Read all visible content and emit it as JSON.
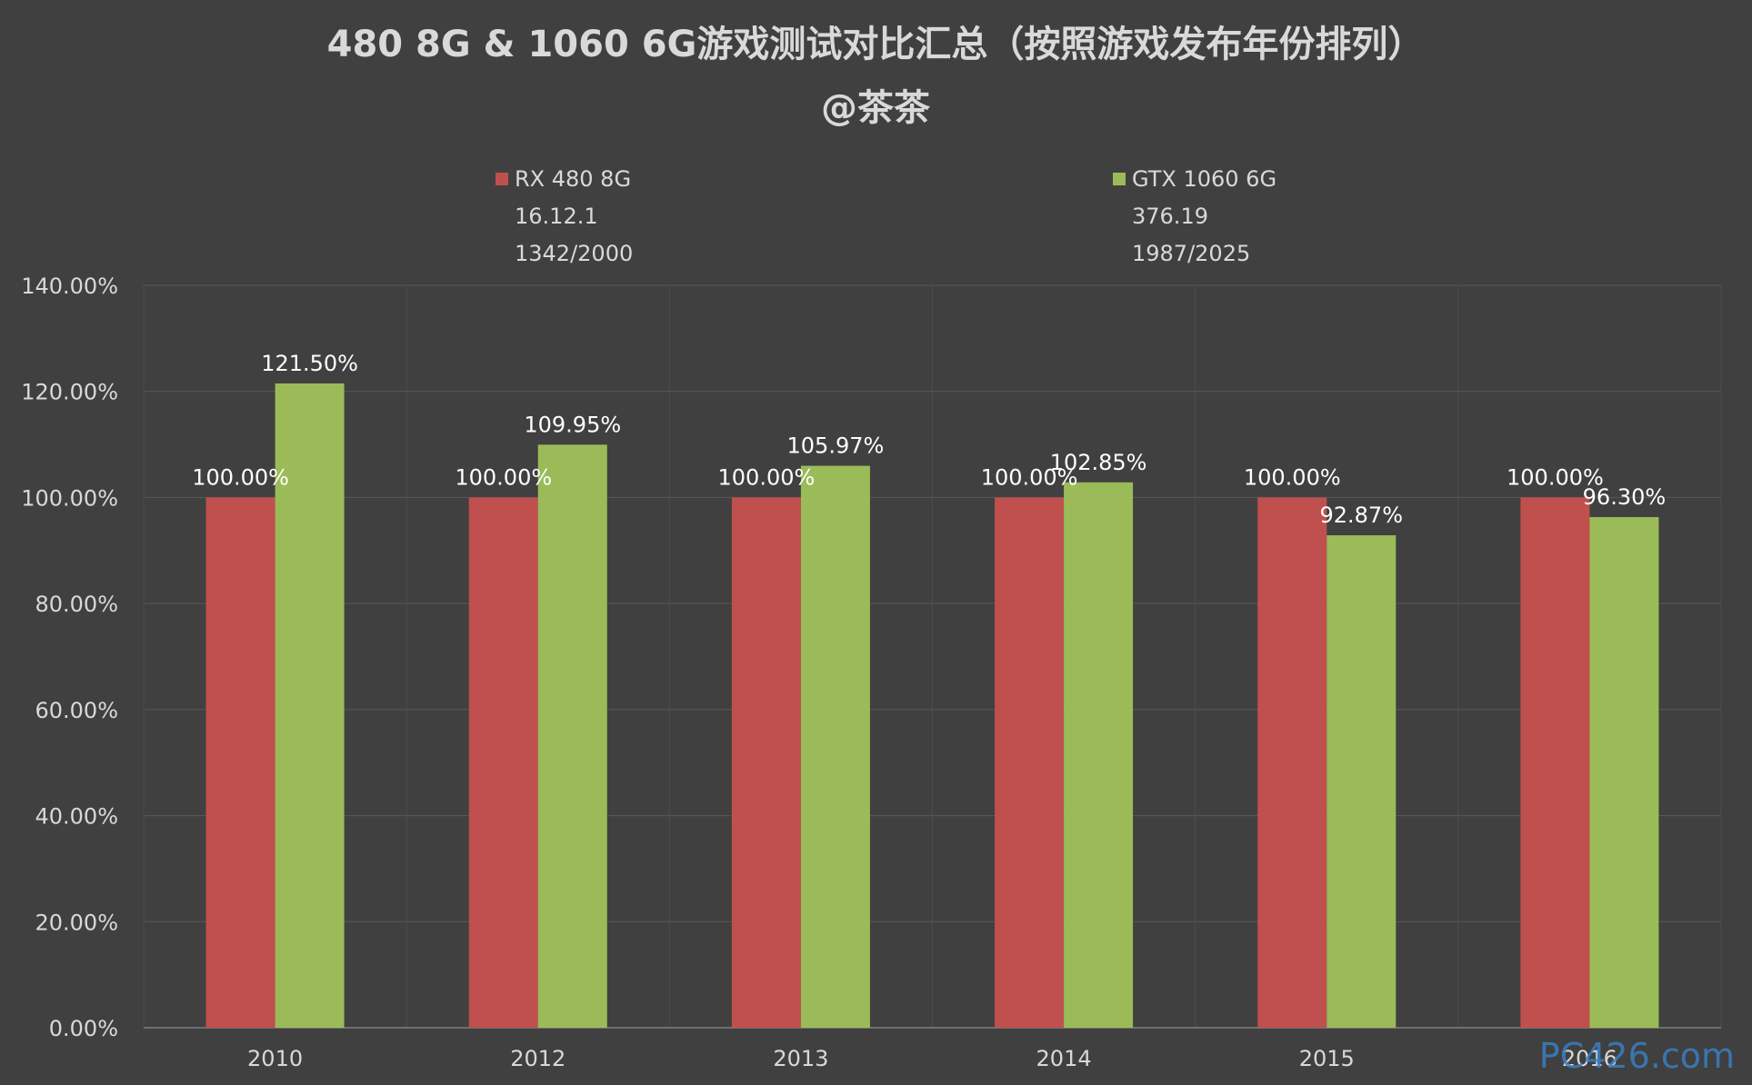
{
  "chart_data": {
    "type": "bar",
    "title": "480 8G & 1060 6G游戏测试对比汇总（按照游戏发布年份排列）",
    "subtitle": "@茶茶",
    "categories": [
      "2010",
      "2012",
      "2013",
      "2014",
      "2015",
      "2016"
    ],
    "series": [
      {
        "name": "RX 480 8G",
        "legend_lines": [
          "16.12.1",
          "1342/2000"
        ],
        "color": "#c0504d",
        "values": [
          100.0,
          100.0,
          100.0,
          100.0,
          100.0,
          100.0
        ],
        "labels": [
          "100.00%",
          "100.00%",
          "100.00%",
          "100.00%",
          "100.00%",
          "100.00%"
        ]
      },
      {
        "name": "GTX 1060 6G",
        "legend_lines": [
          "376.19",
          "1987/2025"
        ],
        "color": "#9bbb59",
        "values": [
          121.5,
          109.95,
          105.97,
          102.85,
          92.87,
          96.3
        ],
        "labels": [
          "121.50%",
          "109.95%",
          "105.97%",
          "102.85%",
          "92.87%",
          "96.30%"
        ]
      }
    ],
    "yticks": [
      "0.00%",
      "20.00%",
      "40.00%",
      "60.00%",
      "80.00%",
      "100.00%",
      "120.00%",
      "140.00%"
    ],
    "ylim": [
      0,
      140
    ],
    "grid": true,
    "legend_position": "top",
    "watermark": "PC426.com"
  }
}
